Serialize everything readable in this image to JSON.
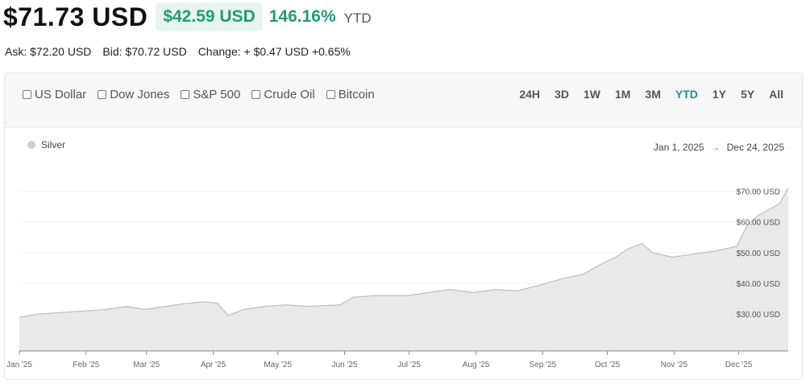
{
  "header": {
    "price": "$71.73 USD",
    "change_amount": "$42.59 USD",
    "change_percent": "146.16%",
    "period": "YTD"
  },
  "quote": {
    "ask": "Ask: $72.20 USD",
    "bid": "Bid: $70.72 USD",
    "change": "Change: + $0.47 USD +0.65%"
  },
  "compare": [
    "US Dollar",
    "Dow Jones",
    "S&P 500",
    "Crude Oil",
    "Bitcoin"
  ],
  "ranges": [
    "24H",
    "3D",
    "1W",
    "1M",
    "3M",
    "YTD",
    "1Y",
    "5Y",
    "All"
  ],
  "active_range": "YTD",
  "legend": "Silver",
  "date_range": {
    "start": "Jan 1, 2025",
    "arrow": "→",
    "end": "Dec 24, 2025"
  },
  "colors": {
    "accent": "#1a8fb0",
    "positive": "#1f9d6f",
    "area": "#e9e9e9",
    "line": "#bdbdbd"
  },
  "chart_data": {
    "type": "area",
    "series": [
      {
        "name": "Silver",
        "x": [
          "2025-01-01",
          "2025-01-10",
          "2025-01-20",
          "2025-01-31",
          "2025-02-10",
          "2025-02-20",
          "2025-02-28",
          "2025-03-10",
          "2025-03-20",
          "2025-03-28",
          "2025-04-03",
          "2025-04-08",
          "2025-04-15",
          "2025-04-25",
          "2025-05-05",
          "2025-05-15",
          "2025-05-30",
          "2025-06-05",
          "2025-06-15",
          "2025-06-30",
          "2025-07-10",
          "2025-07-20",
          "2025-07-31",
          "2025-08-10",
          "2025-08-20",
          "2025-08-31",
          "2025-09-10",
          "2025-09-20",
          "2025-09-30",
          "2025-10-05",
          "2025-10-10",
          "2025-10-17",
          "2025-10-22",
          "2025-10-31",
          "2025-11-10",
          "2025-11-20",
          "2025-11-30",
          "2025-12-05",
          "2025-12-10",
          "2025-12-15",
          "2025-12-20",
          "2025-12-24"
        ],
        "values": [
          29.0,
          30.0,
          30.5,
          31.0,
          31.5,
          32.5,
          31.5,
          32.5,
          33.5,
          34.0,
          33.5,
          29.5,
          31.5,
          32.5,
          33.0,
          32.5,
          33.0,
          35.5,
          36.0,
          36.0,
          37.0,
          38.0,
          37.0,
          38.0,
          37.5,
          39.5,
          41.5,
          43.0,
          47.0,
          48.5,
          51.0,
          53.0,
          50.0,
          48.5,
          49.5,
          50.5,
          52.0,
          59.0,
          62.0,
          64.0,
          66.0,
          71.0
        ]
      }
    ],
    "xticks": [
      "Jan '25",
      "Feb '25",
      "Mar '25",
      "Apr '25",
      "May '25",
      "Jun '25",
      "Jul '25",
      "Aug '25",
      "Sep '25",
      "Oct '25",
      "Nov '25",
      "Dec '25"
    ],
    "yticks": [
      "$30.00 USD",
      "$40.00 USD",
      "$50.00 USD",
      "$60.00 USD",
      "$70.00 USD"
    ],
    "ytick_values": [
      30,
      40,
      50,
      60,
      70
    ],
    "ylim": [
      18,
      73
    ],
    "xlim": [
      "2025-01-01",
      "2025-12-24"
    ]
  }
}
